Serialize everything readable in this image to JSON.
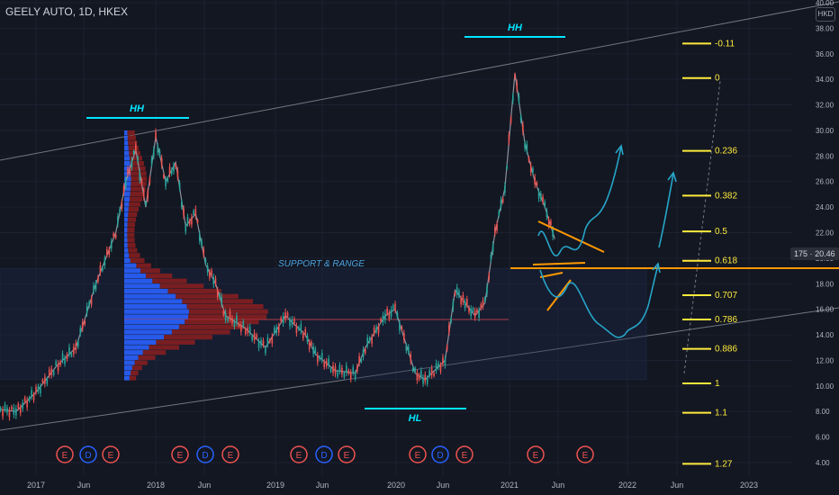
{
  "header": {
    "title": "GEELY AUTO, 1D, HKEX",
    "currency": "HKD"
  },
  "price_badge": {
    "label": "175",
    "value": "20.46"
  },
  "colors": {
    "background": "#131722",
    "up": "#26a69a",
    "down": "#ef5350",
    "volume_profile_blue": "#2962ff",
    "volume_profile_red": "#8b1e1e",
    "fib": "#ffeb3b",
    "trendline": "#b2b5be",
    "arrows": "#26a5c8",
    "orange": "#ff9800",
    "hh_line": "#00e5ff"
  },
  "annotations": {
    "hh_left": "HH",
    "hh_right": "HH",
    "hl": "HL",
    "support": "SUPPORT & RANGE"
  },
  "fib_levels": [
    {
      "label": "-0.11",
      "price": 36.8
    },
    {
      "label": "0",
      "price": 34.1
    },
    {
      "label": "0.236",
      "price": 28.4
    },
    {
      "label": "0.382",
      "price": 24.9
    },
    {
      "label": "0.5",
      "price": 22.1
    },
    {
      "label": "0.618",
      "price": 19.8
    },
    {
      "label": "0.707",
      "price": 17.1
    },
    {
      "label": "0.786",
      "price": 15.2
    },
    {
      "label": "0.886",
      "price": 12.9
    },
    {
      "label": "1",
      "price": 10.2
    },
    {
      "label": "1.1",
      "price": 7.9
    },
    {
      "label": "1.27",
      "price": 3.9
    }
  ],
  "events": [
    "E",
    "D",
    "E",
    "E",
    "D",
    "E",
    "E",
    "D",
    "E",
    "E",
    "D",
    "E",
    "E",
    "E"
  ],
  "chart_data": {
    "type": "line",
    "title": "GEELY AUTO, 1D, HKEX",
    "y_axis": {
      "min": 4,
      "max": 40,
      "step": 2,
      "unit": "HKD",
      "position": "right",
      "ticks": [
        "4.00",
        "6.00",
        "8.00",
        "10.00",
        "12.00",
        "14.00",
        "16.00",
        "18.00",
        "20.00",
        "22.00",
        "24.00",
        "26.00",
        "28.00",
        "30.00",
        "32.00",
        "34.00",
        "36.00",
        "38.00",
        "40.00"
      ]
    },
    "x_axis": {
      "ticks": [
        "2017",
        "Jun",
        "2018",
        "Jun",
        "2019",
        "Jun",
        "2020",
        "Jun",
        "2021",
        "Jun",
        "2022",
        "Jun",
        "2023"
      ]
    },
    "series": [
      {
        "x": [
          "2016-07",
          "2016-09",
          "2016-11",
          "2017-01",
          "2017-03",
          "2017-05",
          "2017-07",
          "2017-09",
          "2017-10",
          "2017-11",
          "2017-12",
          "2018-01",
          "2018-02",
          "2018-03",
          "2018-04",
          "2018-05",
          "2018-06",
          "2018-07",
          "2018-08",
          "2018-10",
          "2018-12",
          "2019-02",
          "2019-04",
          "2019-05",
          "2019-07",
          "2019-09",
          "2019-10",
          "2019-12",
          "2020-01",
          "2020-03",
          "2020-04",
          "2020-06",
          "2020-07",
          "2020-08",
          "2020-09",
          "2020-10",
          "2020-11",
          "2020-12",
          "2021-01",
          "2021-02",
          "2021-03",
          "2021-04",
          "2021-05"
        ],
        "y": [
          7.5,
          8.2,
          8.0,
          9.5,
          11.5,
          13.0,
          18.0,
          22.0,
          26.0,
          28.5,
          24.0,
          29.5,
          26.0,
          27.5,
          22.5,
          23.5,
          19.5,
          18.0,
          15.5,
          14.5,
          13.0,
          15.5,
          14.0,
          12.5,
          11.2,
          11.0,
          13.0,
          15.5,
          16.0,
          11.0,
          10.5,
          12.0,
          17.5,
          16.5,
          15.5,
          16.5,
          22.0,
          25.5,
          34.5,
          29.0,
          26.0,
          24.0,
          21.5
        ]
      }
    ],
    "support_range": {
      "low": 10.5,
      "high": 19.2
    },
    "profile_poc": 15.2
  }
}
